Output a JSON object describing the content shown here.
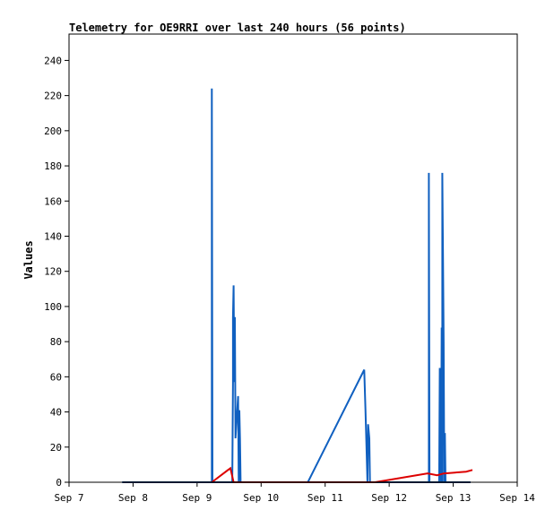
{
  "chart_data": {
    "type": "line",
    "title": "Telemetry for OE9RRI over last 240 hours (56 points)",
    "xlabel": "",
    "ylabel": "Values",
    "x_ticks": [
      "Sep 7",
      "Sep 8",
      "Sep 9",
      "Sep 10",
      "Sep 11",
      "Sep 12",
      "Sep 13",
      "Sep 14"
    ],
    "x_range_days": [
      7,
      14
    ],
    "y_ticks": [
      0,
      20,
      40,
      60,
      80,
      100,
      120,
      140,
      160,
      180,
      200,
      220,
      240
    ],
    "ylim": [
      0,
      255
    ],
    "grid": false,
    "legend": "none",
    "series": [
      {
        "color": "#1060c0",
        "points": [
          [
            7.83,
            0
          ],
          [
            9.23,
            0
          ],
          [
            9.23,
            224
          ],
          [
            9.24,
            0
          ],
          [
            9.55,
            0
          ],
          [
            9.56,
            57
          ],
          [
            9.56,
            94
          ],
          [
            9.57,
            112
          ],
          [
            9.58,
            57
          ],
          [
            9.59,
            94
          ],
          [
            9.6,
            25
          ],
          [
            9.64,
            49
          ],
          [
            9.65,
            0
          ],
          [
            9.66,
            41
          ],
          [
            9.67,
            25
          ],
          [
            9.68,
            0
          ],
          [
            10.73,
            0
          ],
          [
            11.61,
            64
          ],
          [
            11.63,
            41
          ],
          [
            11.66,
            0
          ],
          [
            11.67,
            33
          ],
          [
            11.69,
            25
          ],
          [
            11.7,
            0
          ],
          [
            11.72,
            0
          ],
          [
            13.27,
            0
          ]
        ]
      },
      {
        "color": "#1060c0",
        "points": [
          [
            12.62,
            0
          ],
          [
            12.62,
            176
          ],
          [
            12.63,
            0
          ],
          [
            12.78,
            0
          ],
          [
            12.79,
            65
          ],
          [
            12.8,
            49
          ],
          [
            12.81,
            0
          ],
          [
            12.82,
            88
          ],
          [
            12.83,
            0
          ],
          [
            12.83,
            176
          ],
          [
            12.84,
            133
          ],
          [
            12.85,
            80
          ],
          [
            12.86,
            0
          ],
          [
            12.87,
            28
          ],
          [
            12.88,
            0
          ]
        ]
      },
      {
        "color": "#dd0000",
        "points": [
          [
            9.23,
            0
          ],
          [
            9.52,
            8
          ],
          [
            9.57,
            0
          ],
          [
            11.78,
            0
          ],
          [
            12.6,
            5
          ],
          [
            12.75,
            4
          ],
          [
            12.85,
            5
          ],
          [
            13.2,
            6
          ],
          [
            13.3,
            7
          ]
        ]
      },
      {
        "color": "#000000",
        "points": [
          [
            7.83,
            0
          ],
          [
            13.27,
            0
          ]
        ]
      }
    ]
  }
}
